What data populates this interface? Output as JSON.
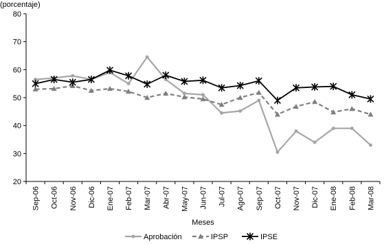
{
  "chart_data": {
    "type": "line",
    "top_label": "(porcentaje)",
    "xlabel": "Meses",
    "ylabel": "",
    "ylim": [
      20,
      80
    ],
    "yticks": [
      20,
      30,
      40,
      50,
      60,
      70,
      80
    ],
    "grid": false,
    "legend_position": "bottom",
    "categories": [
      "Sep-06",
      "Oct-06",
      "Nov-06",
      "Dic-06",
      "Ene-07",
      "Feb-07",
      "Mar-07",
      "Abr-07",
      "May-07",
      "Jun-07",
      "Jul-07",
      "Ago-07",
      "Sep-07",
      "Oct-07",
      "Nov-07",
      "Dic-07",
      "Ene-08",
      "Feb-08",
      "Mar-08"
    ],
    "series": [
      {
        "name": "Aprobación",
        "color": "#a6a6a6",
        "marker": "circle",
        "dash": "solid",
        "values": [
          56.5,
          57.0,
          57.8,
          56.5,
          59.0,
          55.0,
          64.5,
          56.5,
          51.5,
          51.0,
          44.5,
          45.2,
          49.0,
          30.5,
          38.0,
          34.0,
          39.0,
          39.0,
          33.0
        ]
      },
      {
        "name": "IPSP",
        "color": "#7f7f7f",
        "marker": "triangle",
        "dash": "dashed",
        "values": [
          53.0,
          53.2,
          54.2,
          52.5,
          53.2,
          52.2,
          50.0,
          51.5,
          50.2,
          49.5,
          47.5,
          50.0,
          51.8,
          44.0,
          46.8,
          48.5,
          44.8,
          46.0,
          44.0
        ]
      },
      {
        "name": "IPSE",
        "color": "#000000",
        "marker": "star",
        "dash": "solid",
        "values": [
          55.0,
          56.5,
          55.5,
          56.5,
          59.8,
          57.8,
          54.8,
          58.0,
          55.8,
          56.2,
          53.5,
          54.3,
          56.0,
          49.0,
          53.5,
          53.8,
          54.0,
          51.0,
          49.5
        ]
      }
    ]
  }
}
